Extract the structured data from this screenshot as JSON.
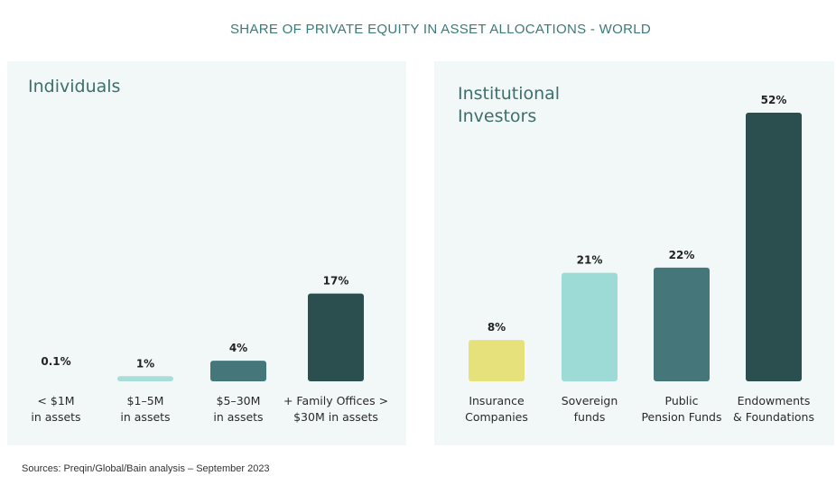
{
  "title": "SHARE OF PRIVATE EQUITY IN ASSET ALLOCATIONS - WORLD",
  "source": "Sources: Preqin/Global/Bain analysis – September 2023",
  "colors": {
    "background_panel": "#f1f8f7",
    "title": "#3a7a78"
  },
  "chart_data": [
    {
      "type": "bar",
      "title": "Individuals",
      "categories": [
        "< $1M\nin assets",
        "$1–5M\nin assets",
        "$5–30M\nin assets",
        "+ Family Offices >\n$30M in assets"
      ],
      "values": [
        0.1,
        1,
        4,
        17
      ],
      "value_labels": [
        "0.1%",
        "1%",
        "4%",
        "17%"
      ],
      "bar_colors": [
        "#a9ddd8",
        "#a9ddd8",
        "#45777a",
        "#2a4f4e"
      ],
      "ylim": [
        0,
        52
      ],
      "grid": false
    },
    {
      "type": "bar",
      "title": "Institutional\nInvestors",
      "categories": [
        "Insurance\nCompanies",
        "Sovereign\nfunds",
        "Public\nPension Funds",
        "Endowments\n& Foundations"
      ],
      "values": [
        8,
        21,
        22,
        52
      ],
      "value_labels": [
        "8%",
        "21%",
        "22%",
        "52%"
      ],
      "bar_colors": [
        "#e6e17a",
        "#9ddcd6",
        "#45777a",
        "#2a4f4e"
      ],
      "ylim": [
        0,
        52
      ],
      "grid": false
    }
  ]
}
